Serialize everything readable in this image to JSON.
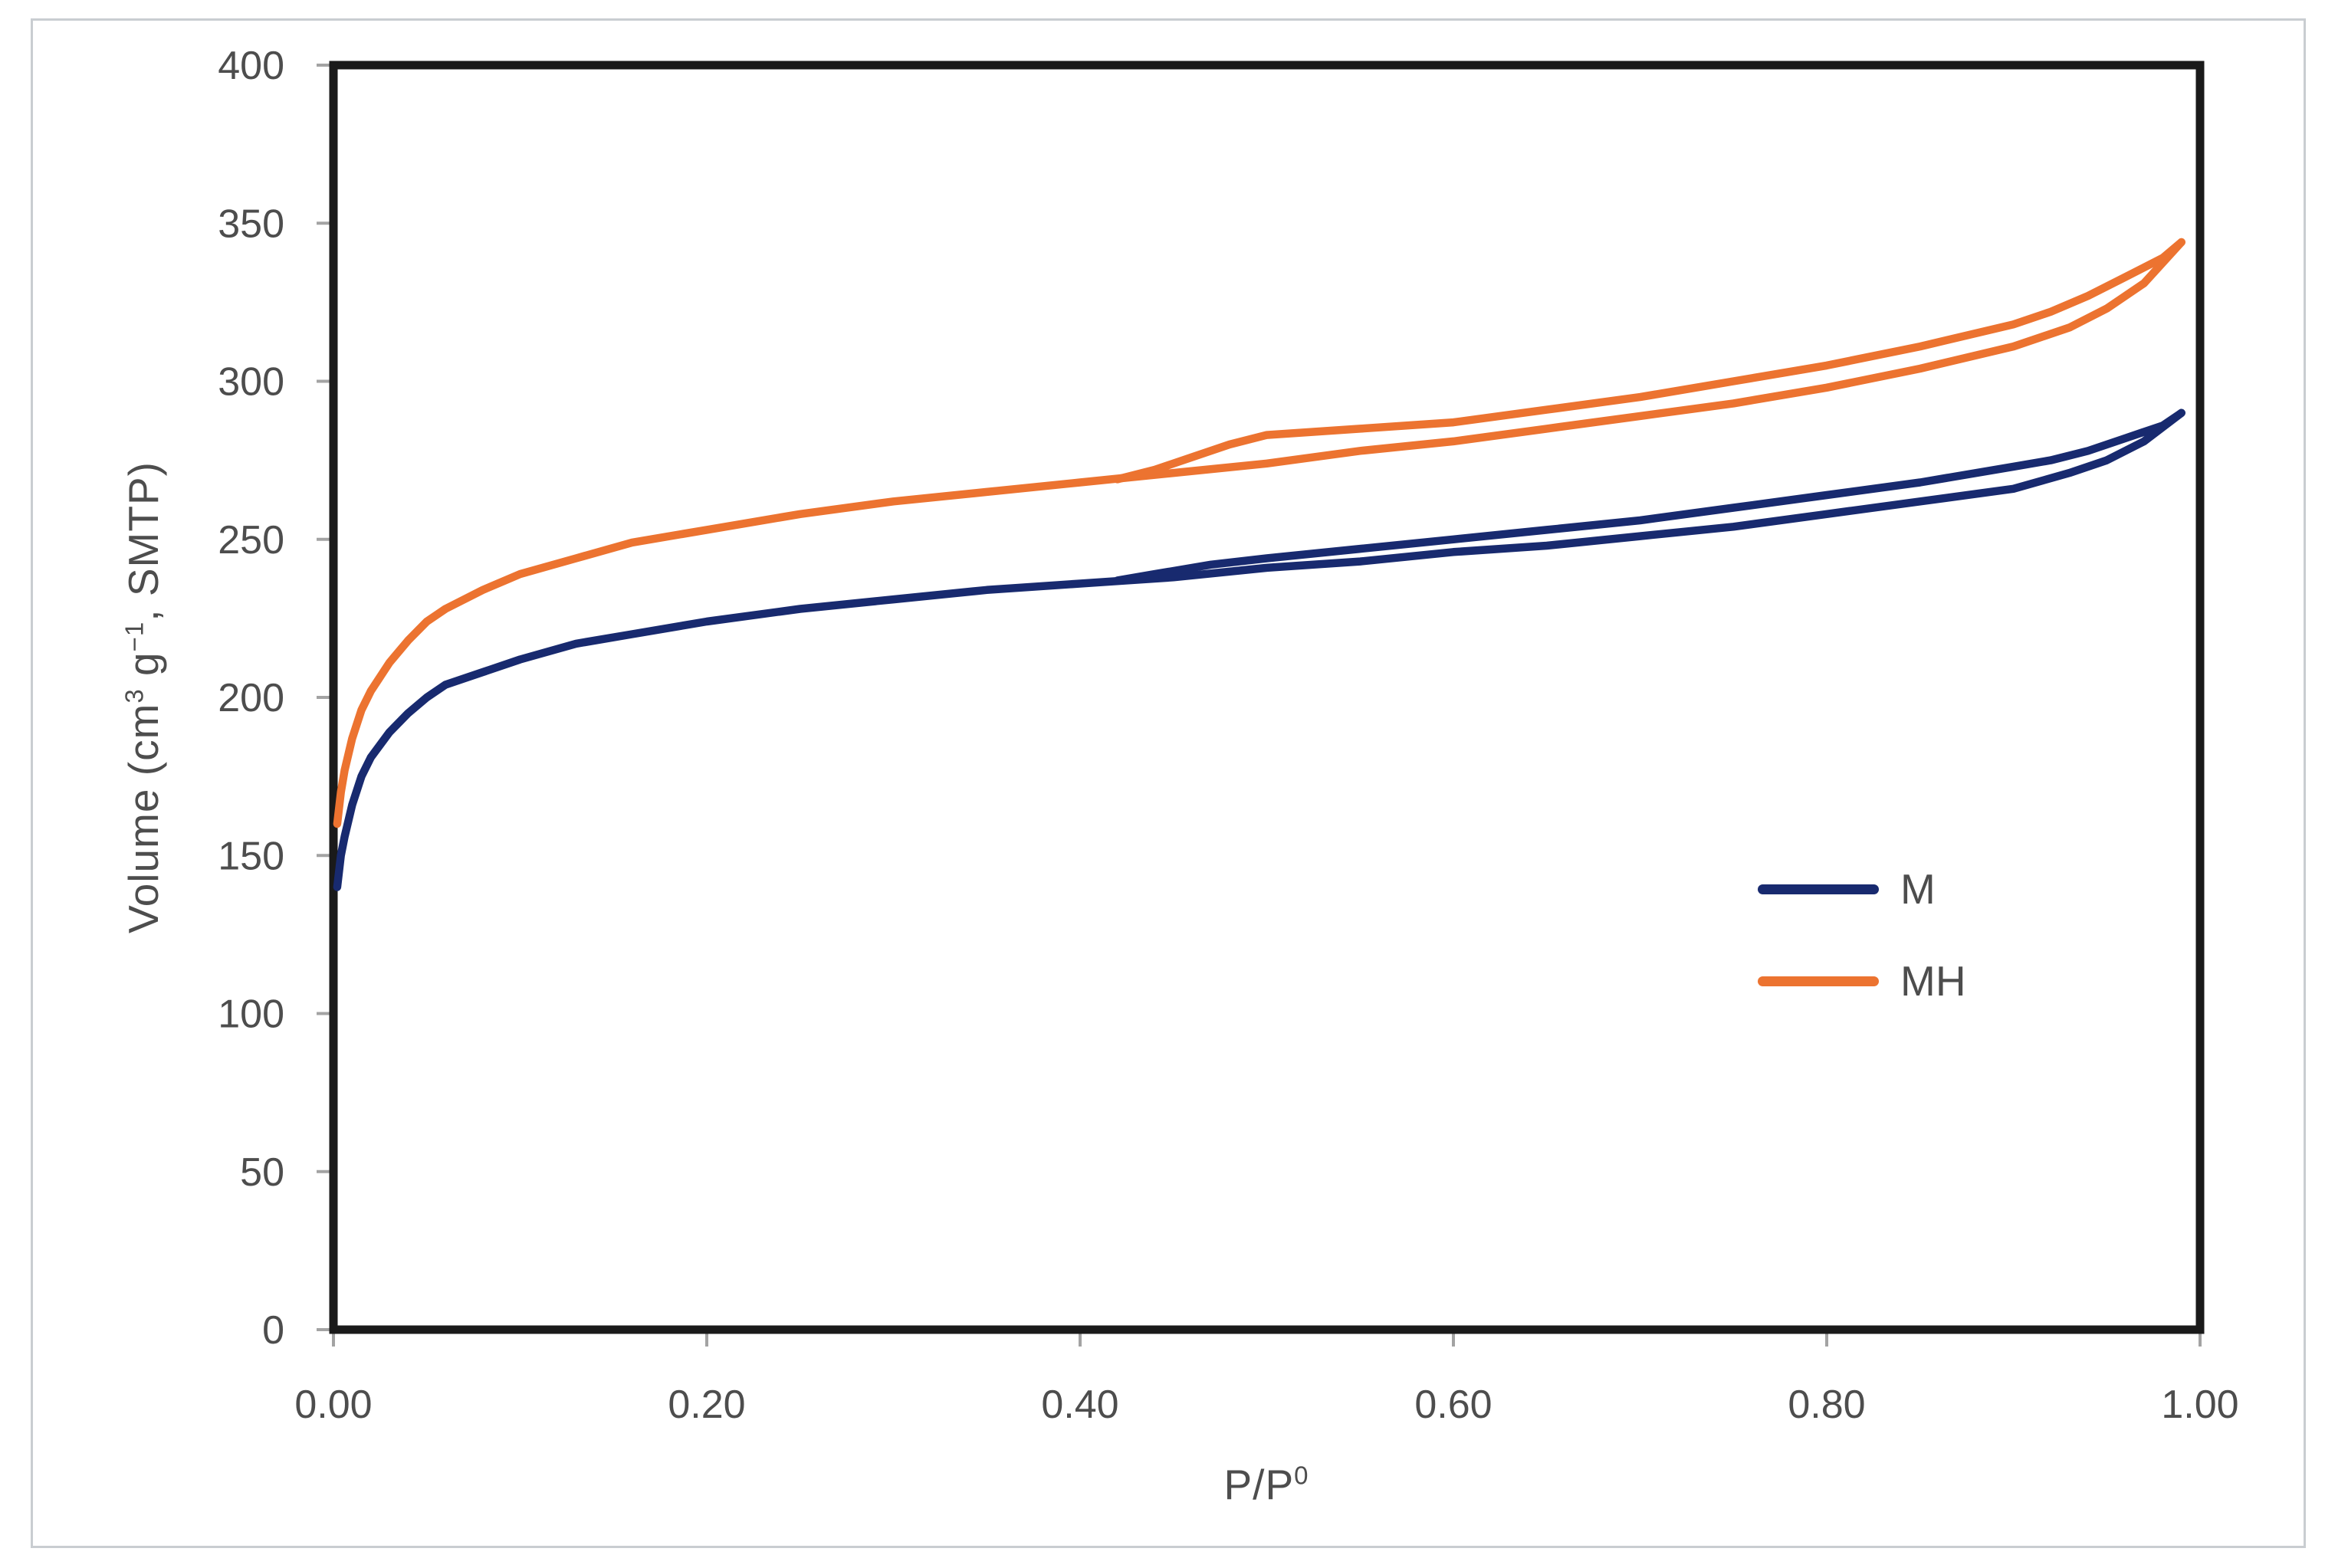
{
  "chart_data": {
    "type": "line",
    "title": "",
    "xlabel": "P/P0",
    "xlabel_base": "P/P",
    "xlabel_sup": "0",
    "ylabel": "Volume (cm3 g-1, SMTP)",
    "ylabel_pre": "Volume (cm",
    "ylabel_sup1": "3",
    "ylabel_mid": " g",
    "ylabel_sup2": "−1",
    "ylabel_post": ", SMTP)",
    "xlim": [
      0.0,
      1.0
    ],
    "ylim": [
      0,
      400
    ],
    "grid": false,
    "legend_position": "inside-right",
    "x_tick_values": [
      0.0,
      0.2,
      0.4,
      0.6,
      0.8,
      1.0
    ],
    "x_tick_labels": [
      "0.00",
      "0.20",
      "0.40",
      "0.60",
      "0.80",
      "1.00"
    ],
    "y_tick_values": [
      0,
      50,
      100,
      150,
      200,
      250,
      300,
      350,
      400
    ],
    "y_tick_labels": [
      "0",
      "50",
      "100",
      "150",
      "200",
      "250",
      "300",
      "350",
      "400"
    ],
    "axis_frame_color": "#1a1a1a",
    "tick_color": "#a3a3a3",
    "tick_label_color": "#4d4d4d",
    "series": [
      {
        "name": "M",
        "color": "#182A6F",
        "branches": {
          "adsorption": [
            [
              0.002,
              140
            ],
            [
              0.004,
              150
            ],
            [
              0.006,
              156
            ],
            [
              0.01,
              166
            ],
            [
              0.015,
              175
            ],
            [
              0.02,
              181
            ],
            [
              0.03,
              189
            ],
            [
              0.04,
              195
            ],
            [
              0.05,
              200
            ],
            [
              0.06,
              204
            ],
            [
              0.08,
              208
            ],
            [
              0.1,
              212
            ],
            [
              0.13,
              217
            ],
            [
              0.16,
              220
            ],
            [
              0.2,
              224
            ],
            [
              0.25,
              228
            ],
            [
              0.3,
              231
            ],
            [
              0.35,
              234
            ],
            [
              0.4,
              236
            ],
            [
              0.45,
              238
            ],
            [
              0.5,
              241
            ],
            [
              0.55,
              243
            ],
            [
              0.6,
              246
            ],
            [
              0.65,
              248
            ],
            [
              0.7,
              251
            ],
            [
              0.75,
              254
            ],
            [
              0.8,
              258
            ],
            [
              0.85,
              262
            ],
            [
              0.9,
              266
            ],
            [
              0.93,
              271
            ],
            [
              0.95,
              275
            ],
            [
              0.97,
              281
            ],
            [
              0.99,
              290
            ]
          ],
          "desorption": [
            [
              0.99,
              290
            ],
            [
              0.98,
              286
            ],
            [
              0.96,
              282
            ],
            [
              0.94,
              278
            ],
            [
              0.92,
              275
            ],
            [
              0.9,
              273
            ],
            [
              0.85,
              268
            ],
            [
              0.8,
              264
            ],
            [
              0.75,
              260
            ],
            [
              0.7,
              256
            ],
            [
              0.65,
              253
            ],
            [
              0.6,
              250
            ],
            [
              0.55,
              247
            ],
            [
              0.5,
              244
            ],
            [
              0.47,
              242
            ],
            [
              0.44,
              239
            ],
            [
              0.42,
              237
            ]
          ]
        }
      },
      {
        "name": "MH",
        "color": "#EC7330",
        "branches": {
          "adsorption": [
            [
              0.002,
              160
            ],
            [
              0.004,
              170
            ],
            [
              0.006,
              177
            ],
            [
              0.01,
              187
            ],
            [
              0.015,
              196
            ],
            [
              0.02,
              202
            ],
            [
              0.03,
              211
            ],
            [
              0.04,
              218
            ],
            [
              0.05,
              224
            ],
            [
              0.06,
              228
            ],
            [
              0.08,
              234
            ],
            [
              0.1,
              239
            ],
            [
              0.13,
              244
            ],
            [
              0.16,
              249
            ],
            [
              0.2,
              253
            ],
            [
              0.25,
              258
            ],
            [
              0.3,
              262
            ],
            [
              0.35,
              265
            ],
            [
              0.4,
              268
            ],
            [
              0.45,
              271
            ],
            [
              0.5,
              274
            ],
            [
              0.55,
              278
            ],
            [
              0.6,
              281
            ],
            [
              0.65,
              285
            ],
            [
              0.7,
              289
            ],
            [
              0.75,
              293
            ],
            [
              0.8,
              298
            ],
            [
              0.85,
              304
            ],
            [
              0.9,
              311
            ],
            [
              0.93,
              317
            ],
            [
              0.95,
              323
            ],
            [
              0.97,
              331
            ],
            [
              0.99,
              344
            ]
          ],
          "desorption": [
            [
              0.99,
              344
            ],
            [
              0.98,
              339
            ],
            [
              0.96,
              333
            ],
            [
              0.94,
              327
            ],
            [
              0.92,
              322
            ],
            [
              0.9,
              318
            ],
            [
              0.85,
              311
            ],
            [
              0.8,
              305
            ],
            [
              0.75,
              300
            ],
            [
              0.7,
              295
            ],
            [
              0.65,
              291
            ],
            [
              0.6,
              287
            ],
            [
              0.55,
              285
            ],
            [
              0.5,
              283
            ],
            [
              0.48,
              280
            ],
            [
              0.46,
              276
            ],
            [
              0.44,
              272
            ],
            [
              0.42,
              269
            ]
          ]
        }
      }
    ]
  },
  "legend": {
    "items": [
      {
        "label": "M"
      },
      {
        "label": "MH"
      }
    ]
  }
}
